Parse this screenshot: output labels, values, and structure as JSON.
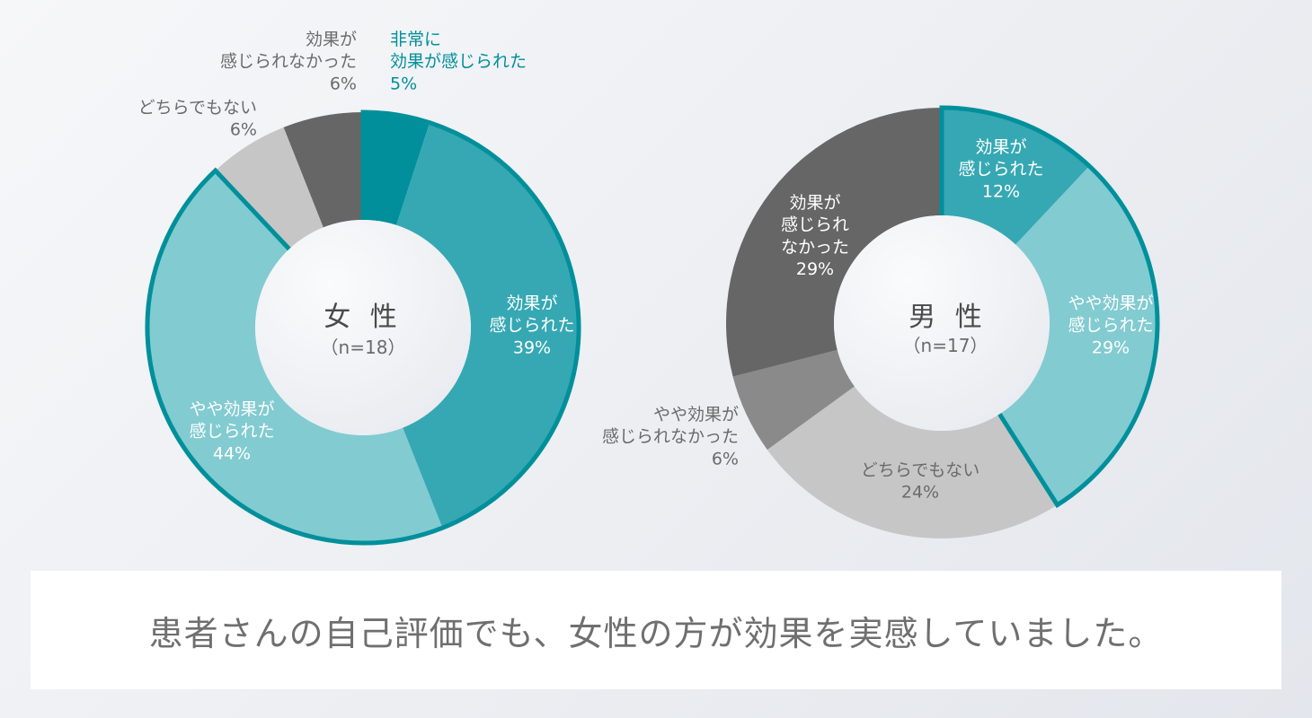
{
  "chart_data": [
    {
      "type": "pie",
      "title": "女 性",
      "subtitle": "（n=18）",
      "slices": [
        {
          "label": [
            "非常に",
            "効果が感じられた"
          ],
          "value": 5,
          "display": "5%",
          "color": "#008f9b",
          "highlight": true
        },
        {
          "label": [
            "効果が",
            "感じられた"
          ],
          "value": 39,
          "display": "39%",
          "color": "#36a8b3",
          "highlight": true
        },
        {
          "label": [
            "やや効果が",
            "感じられた"
          ],
          "value": 44,
          "display": "44%",
          "color": "#82cbd1",
          "highlight": true
        },
        {
          "label": [
            "どちらでもない"
          ],
          "value": 6,
          "display": "6%",
          "color": "#c6c6c6",
          "highlight": false
        },
        {
          "label": [
            "効果が",
            "感じられなかった"
          ],
          "value": 6,
          "display": "6%",
          "color": "#666666",
          "highlight": false
        }
      ]
    },
    {
      "type": "pie",
      "title": "男 性",
      "subtitle": "（n=17）",
      "slices": [
        {
          "label": [
            "効果が",
            "感じられた"
          ],
          "value": 12,
          "display": "12%",
          "color": "#36a8b3",
          "highlight": true
        },
        {
          "label": [
            "やや効果が",
            "感じられた"
          ],
          "value": 29,
          "display": "29%",
          "color": "#82cbd1",
          "highlight": true
        },
        {
          "label": [
            "どちらでもない"
          ],
          "value": 24,
          "display": "24%",
          "color": "#c6c6c6",
          "highlight": false
        },
        {
          "label": [
            "やや効果が",
            "感じられなかった"
          ],
          "value": 6,
          "display": "6%",
          "color": "#8a8a8a",
          "highlight": false
        },
        {
          "label": [
            "効果が",
            "感じられ",
            "なかった"
          ],
          "value": 29,
          "display": "29%",
          "color": "#666666",
          "highlight": false
        }
      ]
    }
  ],
  "caption": "患者さんの自己評価でも、女性の方が効果を実感していました。",
  "colors": {
    "outline": "#00909b",
    "label_dark": "#6b6b6b",
    "label_teal": "#00909b",
    "label_white": "#ffffff"
  }
}
